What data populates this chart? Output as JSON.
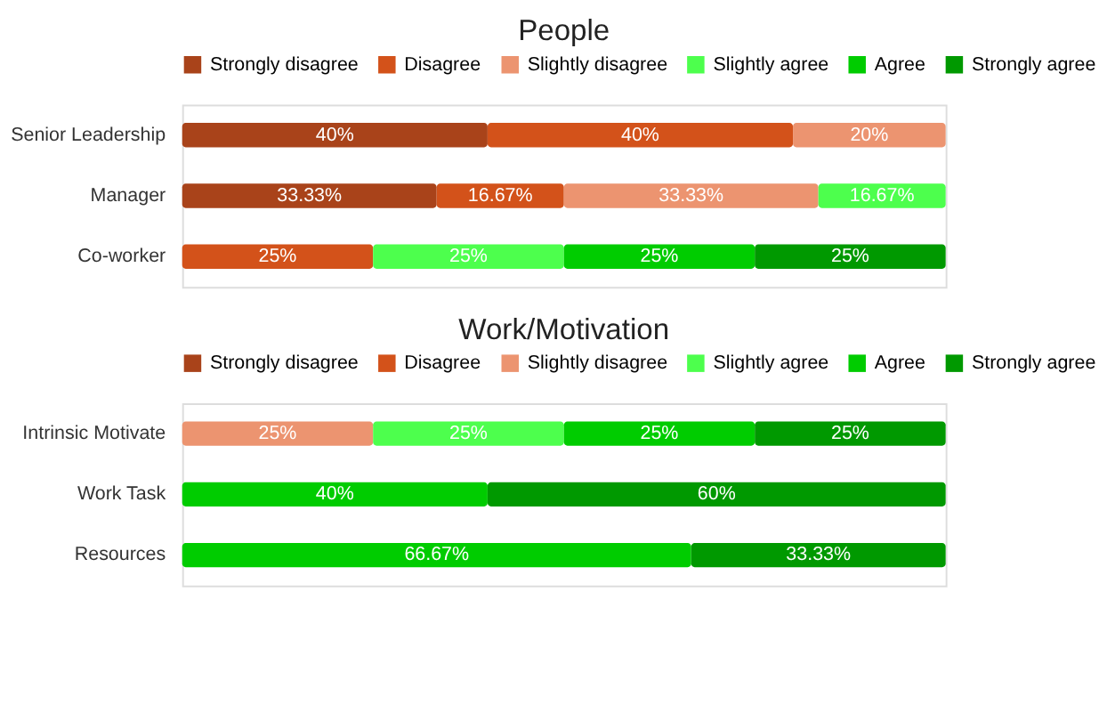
{
  "chart_data": [
    {
      "type": "bar",
      "title": "People",
      "orientation": "horizontal",
      "stacked": true,
      "legend": "top",
      "tick_labels": "y",
      "grid": false,
      "xlim": [
        0,
        100
      ],
      "categories": [
        "Senior Leadership",
        "Manager",
        "Co-worker"
      ],
      "series": [
        {
          "name": "Strongly disagree",
          "color": "#a9431a",
          "values": [
            40,
            33.33,
            null
          ],
          "value_labels": [
            "40%",
            "33.33%",
            null
          ]
        },
        {
          "name": "Disagree",
          "color": "#d3521a",
          "values": [
            40,
            16.67,
            25
          ],
          "value_labels": [
            "40%",
            "16.67%",
            "25%"
          ]
        },
        {
          "name": "Slightly disagree",
          "color": "#ec9470",
          "values": [
            20,
            33.33,
            null
          ],
          "value_labels": [
            "20%",
            "33.33%",
            null
          ]
        },
        {
          "name": "Slightly agree",
          "color": "#4dff4d",
          "values": [
            null,
            16.67,
            25
          ],
          "value_labels": [
            null,
            "16.67%",
            "25%"
          ]
        },
        {
          "name": "Agree",
          "color": "#00cc00",
          "values": [
            null,
            null,
            25
          ],
          "value_labels": [
            null,
            null,
            "25%"
          ]
        },
        {
          "name": "Strongly agree",
          "color": "#009900",
          "values": [
            null,
            null,
            25
          ],
          "value_labels": [
            null,
            null,
            "25%"
          ]
        }
      ]
    },
    {
      "type": "bar",
      "title": "Work/Motivation",
      "orientation": "horizontal",
      "stacked": true,
      "legend": "top",
      "tick_labels": "y",
      "grid": false,
      "xlim": [
        0,
        100
      ],
      "categories": [
        "Intrinsic Motivate",
        "Work Task",
        "Resources"
      ],
      "series": [
        {
          "name": "Strongly disagree",
          "color": "#a9431a",
          "values": [
            null,
            null,
            null
          ],
          "value_labels": [
            null,
            null,
            null
          ]
        },
        {
          "name": "Disagree",
          "color": "#d3521a",
          "values": [
            null,
            null,
            null
          ],
          "value_labels": [
            null,
            null,
            null
          ]
        },
        {
          "name": "Slightly disagree",
          "color": "#ec9470",
          "values": [
            25,
            null,
            null
          ],
          "value_labels": [
            "25%",
            null,
            null
          ]
        },
        {
          "name": "Slightly agree",
          "color": "#4dff4d",
          "values": [
            25,
            null,
            null
          ],
          "value_labels": [
            "25%",
            null,
            null
          ]
        },
        {
          "name": "Agree",
          "color": "#00cc00",
          "values": [
            25,
            40,
            66.67
          ],
          "value_labels": [
            "25%",
            "40%",
            "66.67%"
          ]
        },
        {
          "name": "Strongly agree",
          "color": "#009900",
          "values": [
            25,
            60,
            33.33
          ],
          "value_labels": [
            "25%",
            "60%",
            "33.33%"
          ]
        }
      ]
    }
  ]
}
